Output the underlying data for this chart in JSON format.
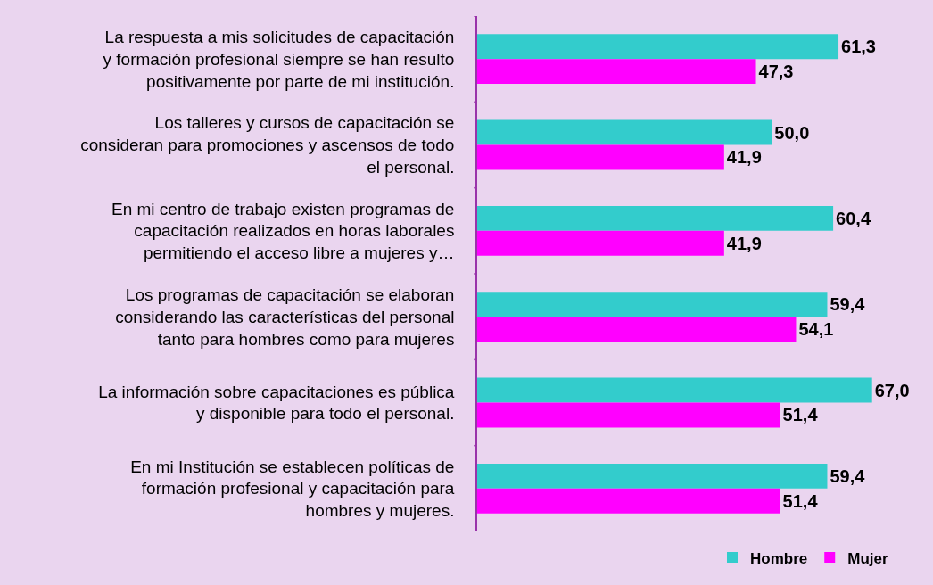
{
  "chart_data": {
    "type": "bar",
    "orientation": "horizontal",
    "grid": false,
    "legend": "bottom right",
    "categories": [
      "La respuesta a mis solicitudes de capacitación y formación profesional siempre se han resulto positivamente por parte de mi institución.",
      "Los talleres y cursos de capacitación se consideran para promociones y ascensos de todo el personal.",
      "En mi centro de trabajo existen programas de capacitación realizados en horas laborales permitiendo el acceso libre a mujeres y…",
      "Los programas de capacitación se elaboran considerando las características del personal tanto para hombres como para mujeres",
      "La información sobre capacitaciones es pública y disponible para todo el personal.",
      "En mi Institución se establecen políticas de formación profesional y capacitación para hombres y mujeres."
    ],
    "series": [
      {
        "name": "Hombre",
        "color": "#33cccc",
        "values": [
          61.3,
          50.0,
          60.4,
          59.4,
          67.0,
          59.4
        ],
        "value_labels": [
          "61,3",
          "50,0",
          "60,4",
          "59,4",
          "67,0",
          "59,4"
        ]
      },
      {
        "name": "Mujer",
        "color": "#ff00ff",
        "values": [
          47.3,
          41.9,
          41.9,
          54.1,
          51.4,
          51.4
        ],
        "value_labels": [
          "47,3",
          "41,9",
          "41,9",
          "54,1",
          "51,4",
          "51,4"
        ]
      }
    ]
  }
}
